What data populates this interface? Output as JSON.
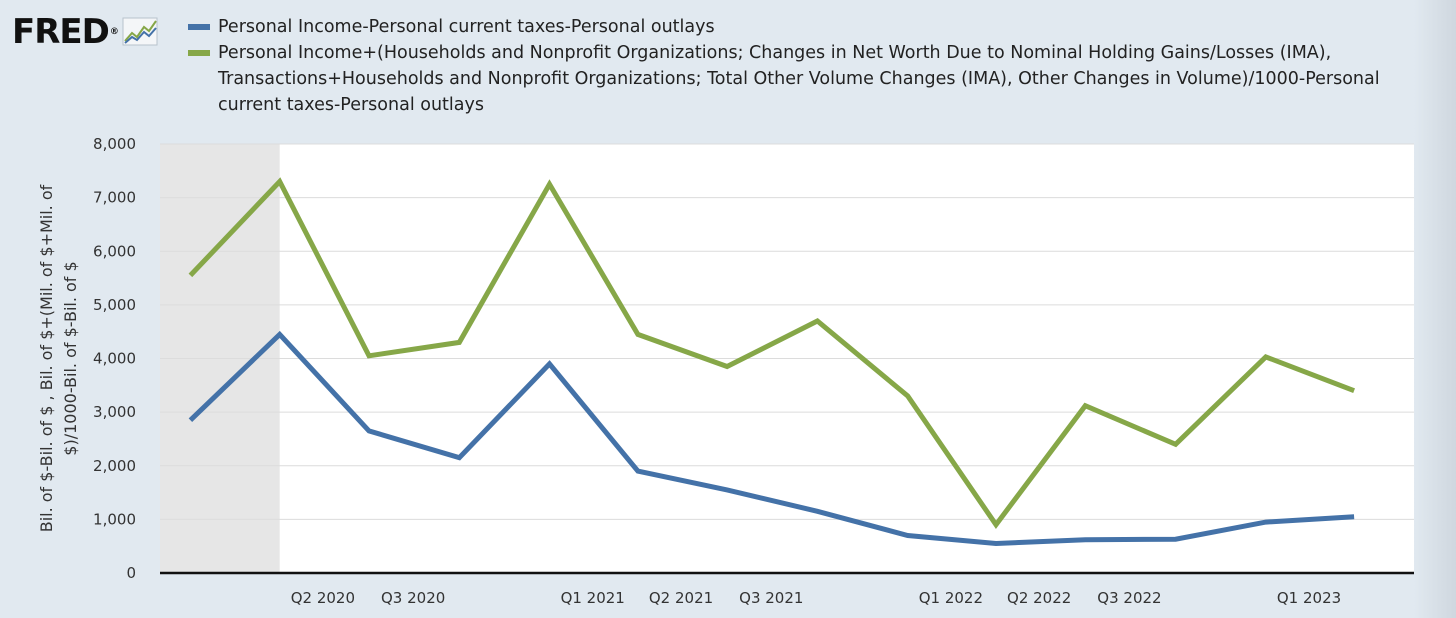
{
  "logo": {
    "text": "FRED",
    "icon": "chart-line-icon"
  },
  "chart_data": {
    "type": "line",
    "ylabel": "Bil. of $-Bil. of $ , Bil. of $+(Mil. of $+Mil. of $)/1000-Bil. of $-Bil. of $",
    "ylabel_lines": [
      "Bil. of $-Bil. of $ , Bil. of $+(Mil. of $+Mil. of",
      "$)/1000-Bil. of $-Bil. of $"
    ],
    "ylim": [
      0,
      8000
    ],
    "yticks": [
      0,
      1000,
      2000,
      3000,
      4000,
      5000,
      6000,
      7000,
      8000
    ],
    "ytick_labels": [
      "0",
      "1,000",
      "2,000",
      "3,000",
      "4,000",
      "5,000",
      "6,000",
      "7,000",
      "8,000"
    ],
    "xtick_labels": [
      "Q2 2020",
      "Q3 2020",
      "Q1 2021",
      "Q2 2021",
      "Q3 2021",
      "Q1 2022",
      "Q2 2022",
      "Q3 2022",
      "Q1 2023"
    ],
    "x": [
      "2020-01-01",
      "2020-04-01",
      "2020-07-01",
      "2020-10-01",
      "2021-01-01",
      "2021-04-01",
      "2021-07-01",
      "2021-10-01",
      "2022-01-01",
      "2022-04-01",
      "2022-07-01",
      "2022-10-01",
      "2023-01-01",
      "2023-04-01"
    ],
    "shaded_region": {
      "from": "2020-01-01",
      "to": "2020-04-01",
      "color": "#e6e6e6"
    },
    "grid": true,
    "series": [
      {
        "name": "Personal Income-Personal current taxes-Personal outlays",
        "color": "#4472a8",
        "values": [
          2850,
          4450,
          2650,
          2150,
          3900,
          1900,
          1550,
          1150,
          700,
          550,
          620,
          630,
          950,
          1050
        ]
      },
      {
        "name": "Personal Income+(Households and Nonprofit Organizations; Changes in Net Worth Due to Nominal Holding Gains/Losses (IMA), Transactions+Households and Nonprofit Organizations; Total Other Volume Changes (IMA), Other Changes in Volume)/1000-Personal current taxes-Personal outlays",
        "color": "#86a748",
        "values": [
          5550,
          7300,
          4050,
          4300,
          7250,
          4450,
          3850,
          4700,
          3300,
          900,
          3120,
          2400,
          4030,
          3400
        ]
      }
    ]
  }
}
